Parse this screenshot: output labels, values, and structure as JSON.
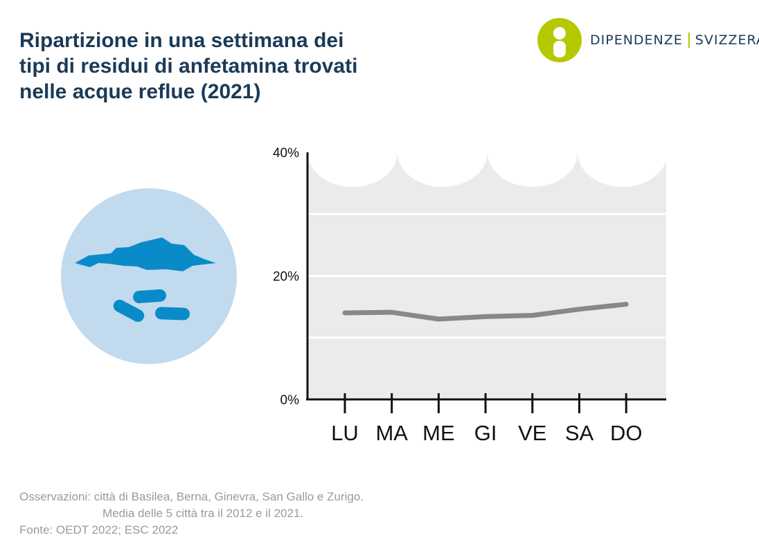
{
  "title_lines": [
    "Ripartizione in una settimana dei",
    "tipi di residui di anfetamina trovati",
    "nelle acque reflue (2021)"
  ],
  "brand": {
    "name_left": "DIPENDENZE",
    "name_right": "SVIZZERA",
    "primary_color": "#b5c800",
    "text_color": "#1b3a57"
  },
  "notes": {
    "line1": "Osservazioni: città di Basilea, Berna, Ginevra, San Gallo e Zurigo.",
    "line2": "Media delle 5 città tra il 2012 e il 2021.",
    "source": "Fonte: OEDT 2022; ESC 2022"
  },
  "chart_data": {
    "type": "line",
    "categories": [
      "LU",
      "MA",
      "ME",
      "GI",
      "VE",
      "SA",
      "DO"
    ],
    "series": [
      {
        "values": [
          14.0,
          14.1,
          13.0,
          13.4,
          13.6,
          14.6,
          15.4
        ],
        "color": "#888888"
      }
    ],
    "ylim": [
      0,
      40
    ],
    "yticks": [
      0,
      20,
      40
    ],
    "ytick_labels": [
      "0%",
      "20%",
      "40%"
    ],
    "gridlines": [
      10,
      20,
      30
    ],
    "grid": true,
    "background_color": "#ebebeb",
    "title": "",
    "xlabel": "",
    "ylabel": ""
  }
}
